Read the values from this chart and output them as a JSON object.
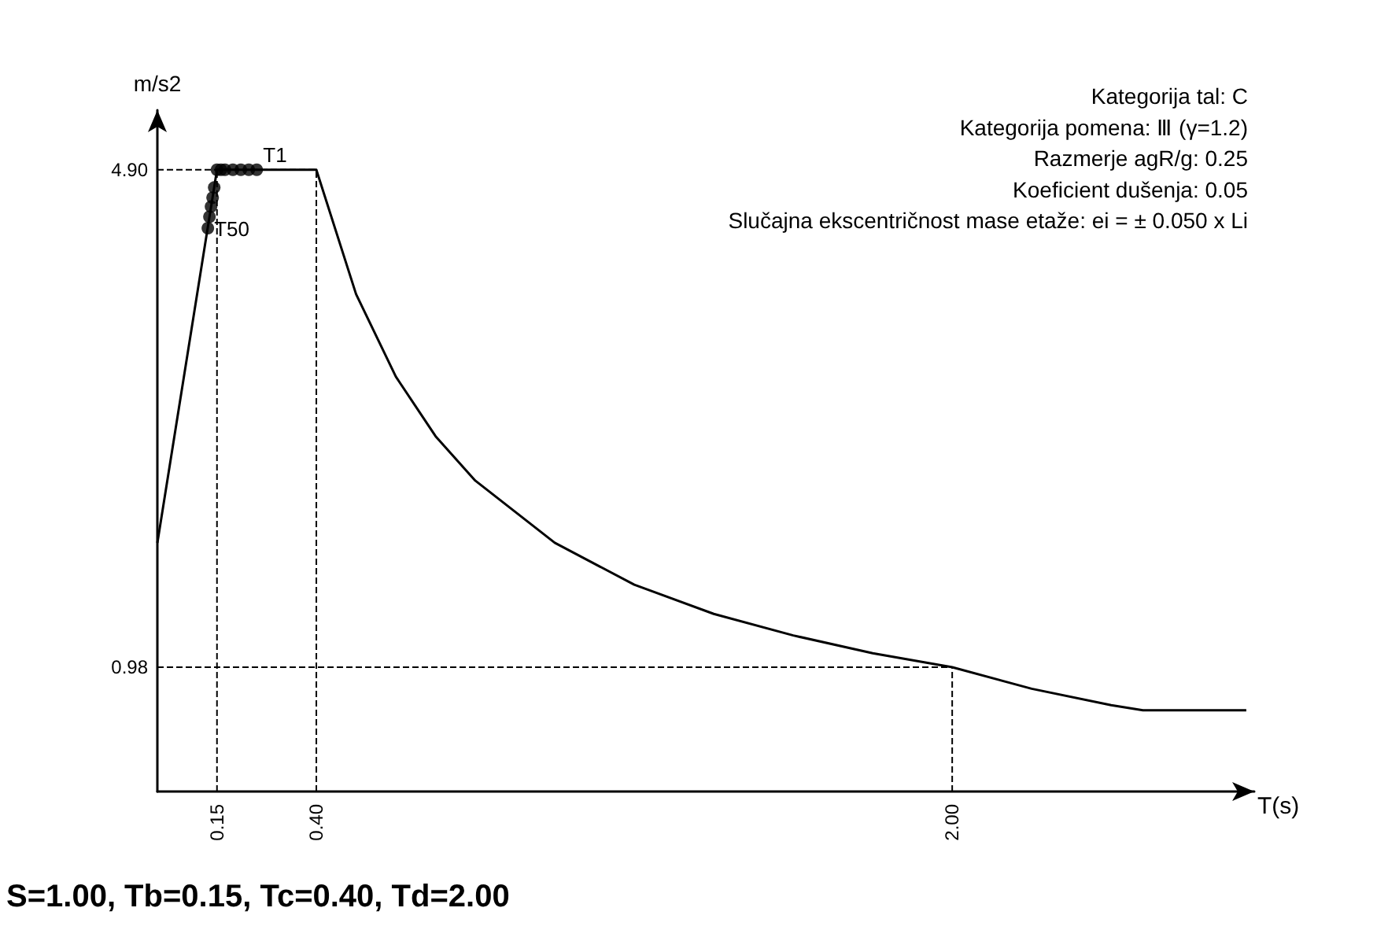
{
  "chart_data": {
    "type": "line",
    "xlabel": "T(s)",
    "ylabel": "m/s2",
    "subtitle": "S=1.00, Tb=0.15, Tc=0.40, Td=2.00",
    "annotations": [
      "Kategorija tal: C",
      "Kategorija pomena: Ⅲ (γ=1.2)",
      "Razmerje agR/g: 0.25",
      "Koeficient dušenja: 0.05",
      "Slučajna ekscentričnost mase etaže: ei = ± 0.050 x Li",
      {
        "text": "T1",
        "x": 0.25,
        "y": 4.9
      },
      {
        "text": "T50",
        "x": 0.127,
        "y": 4.44
      }
    ],
    "xlim": [
      0,
      2.76
    ],
    "ylim": [
      0,
      5.37
    ],
    "xticks": [
      {
        "value": 0.15,
        "label": "0.15"
      },
      {
        "value": 0.4,
        "label": "0.40"
      },
      {
        "value": 2.0,
        "label": "2.00"
      }
    ],
    "yticks": [
      {
        "value": 0.98,
        "label": "0.98"
      },
      {
        "value": 4.9,
        "label": "4.90"
      }
    ],
    "grid": false,
    "series": [
      {
        "color": "#000000",
        "marker": "none",
        "line_style": "solid",
        "x": [
          0,
          0.15,
          0.4,
          0.5,
          0.6,
          0.7,
          0.8,
          1.0,
          1.2,
          1.4,
          1.6,
          1.8,
          2.0,
          2.2,
          2.4,
          2.48,
          2.74
        ],
        "values": [
          1.96,
          4.9,
          4.9,
          3.92,
          3.27,
          2.8,
          2.45,
          1.96,
          1.63,
          1.4,
          1.23,
          1.09,
          0.98,
          0.81,
          0.68,
          0.64,
          0.64
        ]
      },
      {
        "type": "scatter",
        "color": "#000000",
        "marker": "circle",
        "x": [
          0.25,
          0.23,
          0.21,
          0.19,
          0.17,
          0.16,
          0.15,
          0.143,
          0.139,
          0.135,
          0.131,
          0.127
        ],
        "values": [
          4.9,
          4.9,
          4.9,
          4.9,
          4.9,
          4.9,
          4.9,
          4.76,
          4.68,
          4.61,
          4.53,
          4.44
        ]
      }
    ],
    "ref_lines": [
      {
        "axis": "x",
        "value": 0.15,
        "line_style": "dashed",
        "color": "#000000"
      },
      {
        "axis": "x",
        "value": 0.4,
        "line_style": "dashed",
        "color": "#000000"
      },
      {
        "axis": "x",
        "value": 2.0,
        "line_style": "dashed",
        "color": "#000000"
      },
      {
        "axis": "y",
        "value": 4.9,
        "line_style": "dashed",
        "color": "#000000"
      },
      {
        "axis": "y",
        "value": 0.98,
        "line_style": "dashed",
        "color": "#000000"
      }
    ]
  }
}
